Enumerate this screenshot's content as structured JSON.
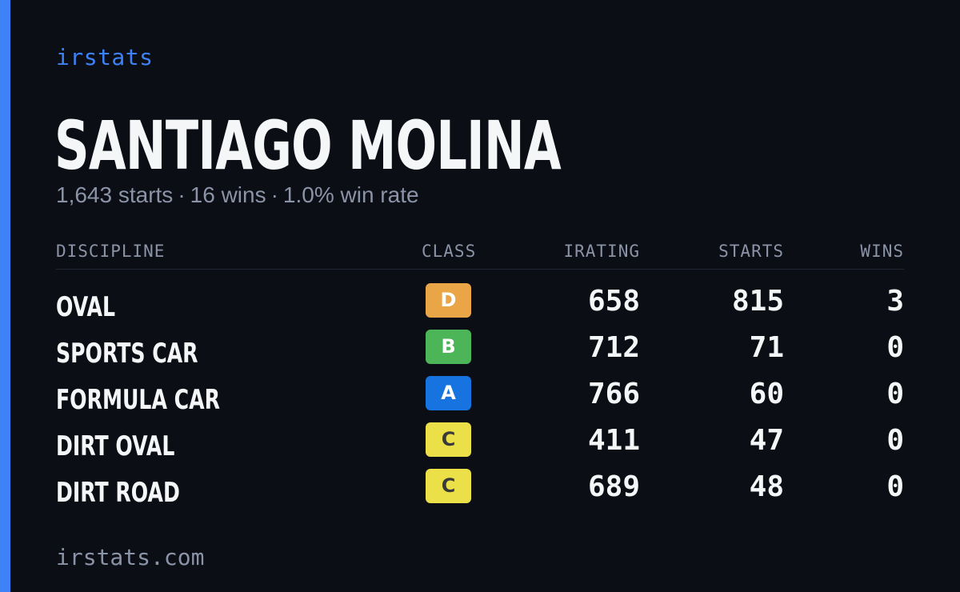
{
  "brand": "irstats",
  "driver": {
    "name": "SANTIAGO MOLINA"
  },
  "summary": {
    "starts": "1,643 starts",
    "wins": "16 wins",
    "win_rate": "1.0% win rate",
    "separator": "·"
  },
  "table": {
    "headers": {
      "discipline": "DISCIPLINE",
      "class": "CLASS",
      "irating": "IRATING",
      "starts": "STARTS",
      "wins": "WINS"
    },
    "rows": [
      {
        "discipline": "OVAL",
        "class": "D",
        "class_color": "#eaa547",
        "class_text_color": "#ffffff",
        "irating": "658",
        "starts": "815",
        "wins": "3"
      },
      {
        "discipline": "SPORTS CAR",
        "class": "B",
        "class_color": "#4cb557",
        "class_text_color": "#ffffff",
        "irating": "712",
        "starts": "71",
        "wins": "0"
      },
      {
        "discipline": "FORMULA CAR",
        "class": "A",
        "class_color": "#1673df",
        "class_text_color": "#ffffff",
        "irating": "766",
        "starts": "60",
        "wins": "0"
      },
      {
        "discipline": "DIRT OVAL",
        "class": "C",
        "class_color": "#ece048",
        "class_text_color": "#3a3a3a",
        "irating": "411",
        "starts": "47",
        "wins": "0"
      },
      {
        "discipline": "DIRT ROAD",
        "class": "C",
        "class_color": "#ece048",
        "class_text_color": "#3a3a3a",
        "irating": "689",
        "starts": "48",
        "wins": "0"
      }
    ]
  },
  "footer": "irstats.com",
  "colors": {
    "background": "#0b0e15",
    "accent": "#3d82f6",
    "muted_text": "#8b93a7",
    "primary_text": "#f5f6f8"
  }
}
